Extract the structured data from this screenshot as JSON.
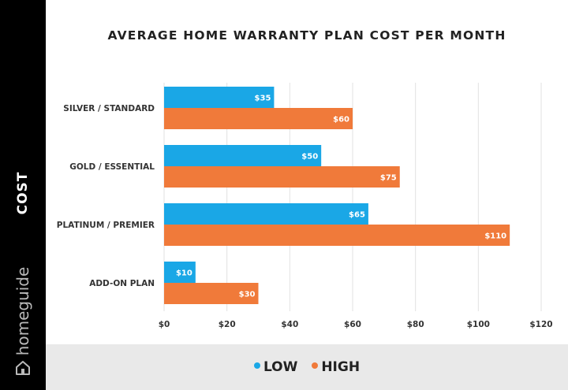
{
  "sidebar": {
    "label": "COST",
    "brand": "homeguide",
    "icon": "house-icon"
  },
  "colors": {
    "low": "#1aa7e6",
    "high": "#f07a3a",
    "grid": "#e2e2e2",
    "legend_bg": "#e9e9e9"
  },
  "chart_data": {
    "type": "bar",
    "orientation": "horizontal",
    "title": "AVERAGE HOME WARRANTY PLAN COST PER MONTH",
    "categories": [
      "SILVER / STANDARD",
      "GOLD / ESSENTIAL",
      "PLATINUM / PREMIER",
      "ADD-ON PLAN"
    ],
    "series": [
      {
        "name": "LOW",
        "values": [
          35,
          50,
          65,
          10
        ],
        "labels": [
          "$35",
          "$50",
          "$65",
          "$10"
        ]
      },
      {
        "name": "HIGH",
        "values": [
          60,
          75,
          110,
          30
        ],
        "labels": [
          "$60",
          "$75",
          "$110",
          "$30"
        ]
      }
    ],
    "xlim": [
      0,
      120
    ],
    "xticks": [
      0,
      20,
      40,
      60,
      80,
      100,
      120
    ],
    "xtick_labels": [
      "$0",
      "$20",
      "$40",
      "$60",
      "$80",
      "$100",
      "$120"
    ],
    "grid": "vertical",
    "legend_position": "bottom"
  }
}
